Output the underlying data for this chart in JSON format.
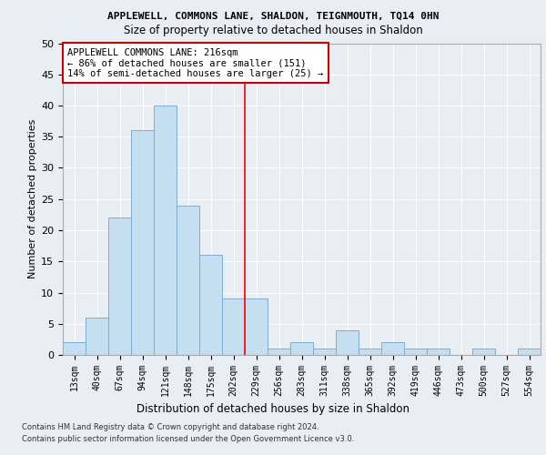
{
  "title1": "APPLEWELL, COMMONS LANE, SHALDON, TEIGNMOUTH, TQ14 0HN",
  "title2": "Size of property relative to detached houses in Shaldon",
  "xlabel": "Distribution of detached houses by size in Shaldon",
  "ylabel": "Number of detached properties",
  "bin_labels": [
    "13sqm",
    "40sqm",
    "67sqm",
    "94sqm",
    "121sqm",
    "148sqm",
    "175sqm",
    "202sqm",
    "229sqm",
    "256sqm",
    "283sqm",
    "311sqm",
    "338sqm",
    "365sqm",
    "392sqm",
    "419sqm",
    "446sqm",
    "473sqm",
    "500sqm",
    "527sqm",
    "554sqm"
  ],
  "bar_heights": [
    2,
    6,
    22,
    36,
    40,
    24,
    16,
    9,
    9,
    1,
    2,
    1,
    4,
    1,
    2,
    1,
    1,
    0,
    1,
    0,
    1
  ],
  "bar_color": "#c5dff0",
  "bar_edge_color": "#7aafd4",
  "vline_x_index": 7,
  "annotation_text": "APPLEWELL COMMONS LANE: 216sqm\n← 86% of detached houses are smaller (151)\n14% of semi-detached houses are larger (25) →",
  "annotation_box_color": "#ffffff",
  "annotation_box_edge": "#cc0000",
  "ylim": [
    0,
    50
  ],
  "yticks": [
    0,
    5,
    10,
    15,
    20,
    25,
    30,
    35,
    40,
    45,
    50
  ],
  "footer1": "Contains HM Land Registry data © Crown copyright and database right 2024.",
  "footer2": "Contains public sector information licensed under the Open Government Licence v3.0.",
  "bg_color": "#e8eef4",
  "grid_color": "#ffffff",
  "title1_fontsize": 8.0,
  "title2_fontsize": 8.5,
  "ylabel_fontsize": 8.0,
  "xlabel_fontsize": 8.5,
  "tick_fontsize": 7.0,
  "ytick_fontsize": 8.0,
  "footer_fontsize": 6.0,
  "ann_fontsize": 7.5
}
